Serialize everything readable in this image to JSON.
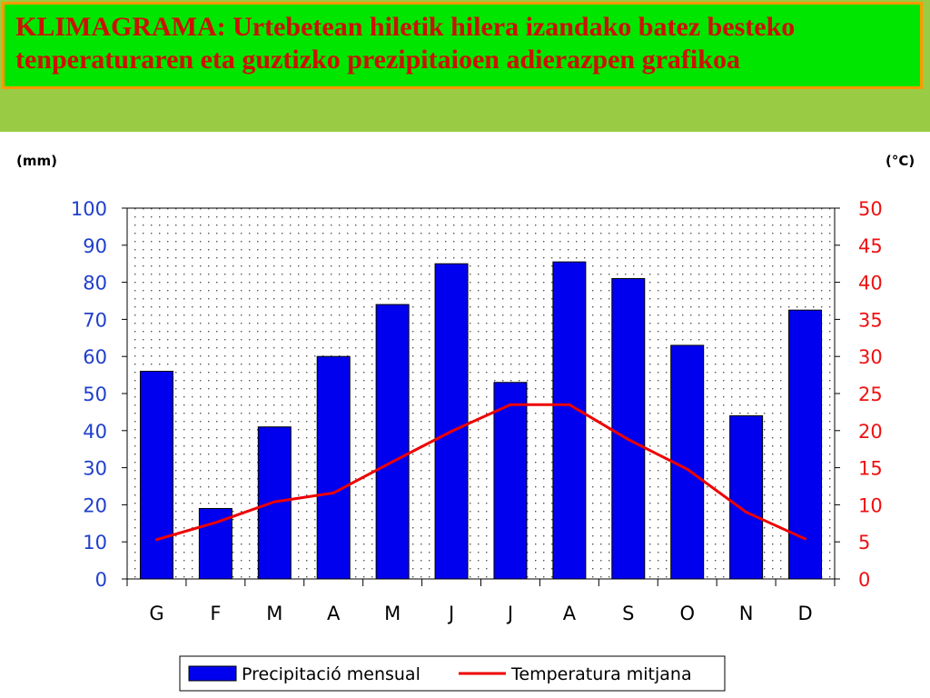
{
  "title": "KLIMAGRAMA: Urtebetean hiletik hilera izandako batez besteko tenperaturaren eta guztizko prezipitaioen adierazpen grafikoa",
  "colors": {
    "bar": "#0000ee",
    "line": "#ee0000",
    "left_axis": "#1f3fcc",
    "right_axis": "#ee1111",
    "title_text": "#cc1100",
    "title_bg": "#00e600",
    "title_border": "#ff9900",
    "band": "#99cc44"
  },
  "chart_data": {
    "type": "bar",
    "categories": [
      "G",
      "F",
      "M",
      "A",
      "M",
      "J",
      "J",
      "A",
      "S",
      "O",
      "N",
      "D"
    ],
    "y_left_label": "(mm)",
    "y_right_label": "(°C)",
    "y_left_ticks": [
      "0",
      "10",
      "20",
      "30",
      "40",
      "50",
      "60",
      "70",
      "80",
      "90",
      "100"
    ],
    "y_right_ticks": [
      "0",
      "5",
      "10",
      "15",
      "20",
      "25",
      "30",
      "35",
      "40",
      "45",
      "50"
    ],
    "y_left_lim": [
      0,
      100
    ],
    "y_right_lim": [
      0,
      50
    ],
    "grid": false,
    "legend_position": "bottom",
    "series": [
      {
        "name": "Precipitació mensual",
        "type": "bar",
        "axis": "left",
        "values": [
          56,
          19,
          41,
          60,
          74,
          85,
          53,
          85.5,
          81,
          63,
          44,
          72.5
        ]
      },
      {
        "name": "Temperatura mitjana",
        "type": "line",
        "axis": "right",
        "values": [
          5.3,
          7.6,
          10.4,
          11.6,
          15.8,
          19.9,
          23.5,
          23.5,
          18.8,
          14.8,
          9.0,
          5.4
        ]
      }
    ]
  }
}
